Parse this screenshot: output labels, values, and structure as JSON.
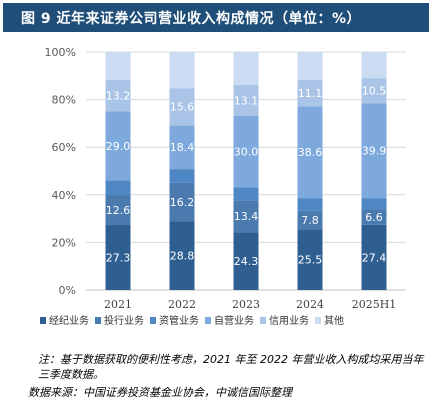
{
  "title": "图 9  近年来证券公司营业收入构成情况（单位：%）",
  "note": "注：基于数据获取的便利性考虑，2021 年至 2022 年营业收入构成均采用当年三季度数据。",
  "source": "数据来源：中国证券投资基金业协会，中诚信国际整理",
  "colors": [
    "#2f5f91",
    "#4a7aae",
    "#4f86c4",
    "#7ea9dc",
    "#a9c4e6",
    "#cbdbf1"
  ],
  "chart_data": {
    "type": "bar",
    "stacked": true,
    "categories": [
      "2021",
      "2022",
      "2023",
      "2024",
      "2025H1"
    ],
    "yticks": [
      "0%",
      "20%",
      "40%",
      "60%",
      "80%",
      "100%"
    ],
    "ylim": [
      0,
      100
    ],
    "grid": true,
    "legend_position": "bottom",
    "series": [
      {
        "name": "经纪业务",
        "values": [
          27.3,
          28.8,
          24.3,
          25.5,
          27.4
        ],
        "labels": [
          "27.3",
          "28.8",
          "24.3",
          "25.5",
          "27.4"
        ]
      },
      {
        "name": "投行业务",
        "values": [
          12.6,
          16.2,
          13.4,
          7.8,
          6.6
        ],
        "labels": [
          "12.6",
          "16.2",
          "13.4",
          "7.8",
          "6.6"
        ]
      },
      {
        "name": "资管业务",
        "values": [
          6.2,
          5.8,
          5.4,
          5.3,
          4.6
        ],
        "labels": []
      },
      {
        "name": "自营业务",
        "values": [
          29.0,
          18.4,
          30.0,
          38.6,
          39.9
        ],
        "labels": [
          "29.0",
          "18.4",
          "30.0",
          "38.6",
          "39.9"
        ]
      },
      {
        "name": "信用业务",
        "values": [
          13.2,
          15.6,
          13.1,
          11.1,
          10.5
        ],
        "labels": [
          "13.2",
          "15.6",
          "13.1",
          "11.1",
          "10.5"
        ]
      },
      {
        "name": "其他",
        "values": [
          11.7,
          15.2,
          13.8,
          11.7,
          11.0
        ],
        "labels": []
      }
    ]
  }
}
